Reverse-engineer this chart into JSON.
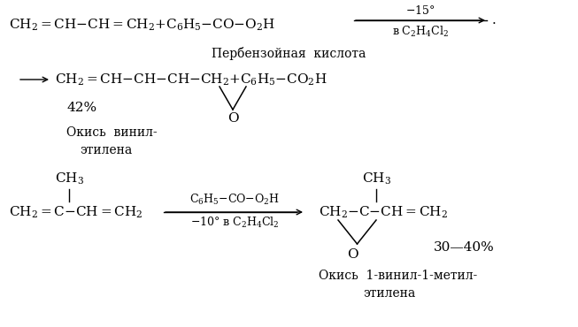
{
  "background_color": "#ffffff",
  "fig_w": 6.53,
  "fig_h": 3.7,
  "dpi": 100,
  "xlim": [
    0,
    653
  ],
  "ylim": [
    0,
    370
  ]
}
